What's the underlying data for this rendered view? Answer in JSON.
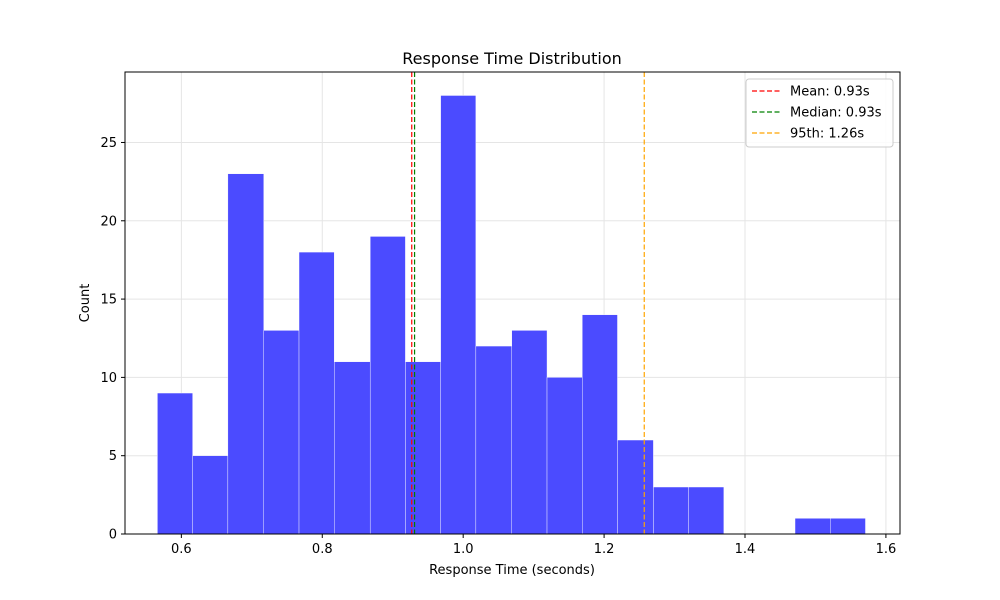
{
  "chart_data": {
    "type": "bar",
    "subtype": "histogram",
    "title": "Response Time Distribution",
    "xlabel": "Response Time (seconds)",
    "ylabel": "Count",
    "xlim": [
      0.52,
      1.62
    ],
    "ylim": [
      0,
      29.5
    ],
    "xticks": [
      0.6,
      0.8,
      1.0,
      1.2,
      1.4,
      1.6
    ],
    "xtick_labels": [
      "0.6",
      "0.8",
      "1.0",
      "1.2",
      "1.4",
      "1.6"
    ],
    "yticks": [
      0,
      5,
      10,
      15,
      20,
      25
    ],
    "ytick_labels": [
      "0",
      "5",
      "10",
      "15",
      "20",
      "25"
    ],
    "grid": true,
    "bar_color": "#4b4bff",
    "bins": [
      {
        "x0": 0.566,
        "x1": 0.616,
        "count": 9
      },
      {
        "x0": 0.616,
        "x1": 0.666,
        "count": 5
      },
      {
        "x0": 0.666,
        "x1": 0.717,
        "count": 23
      },
      {
        "x0": 0.717,
        "x1": 0.767,
        "count": 13
      },
      {
        "x0": 0.767,
        "x1": 0.817,
        "count": 18
      },
      {
        "x0": 0.817,
        "x1": 0.868,
        "count": 11
      },
      {
        "x0": 0.868,
        "x1": 0.918,
        "count": 19
      },
      {
        "x0": 0.918,
        "x1": 0.968,
        "count": 11
      },
      {
        "x0": 0.968,
        "x1": 1.018,
        "count": 28
      },
      {
        "x0": 1.018,
        "x1": 1.069,
        "count": 12
      },
      {
        "x0": 1.069,
        "x1": 1.119,
        "count": 13
      },
      {
        "x0": 1.119,
        "x1": 1.169,
        "count": 10
      },
      {
        "x0": 1.169,
        "x1": 1.219,
        "count": 14
      },
      {
        "x0": 1.219,
        "x1": 1.27,
        "count": 6
      },
      {
        "x0": 1.27,
        "x1": 1.32,
        "count": 3
      },
      {
        "x0": 1.32,
        "x1": 1.37,
        "count": 3
      },
      {
        "x0": 1.37,
        "x1": 1.42,
        "count": 0
      },
      {
        "x0": 1.42,
        "x1": 1.471,
        "count": 0
      },
      {
        "x0": 1.471,
        "x1": 1.521,
        "count": 1
      },
      {
        "x0": 1.521,
        "x1": 1.571,
        "count": 1
      }
    ],
    "reference_lines": [
      {
        "label": "Mean: 0.93s",
        "value": 0.927,
        "color": "#ff0000"
      },
      {
        "label": "Median: 0.93s",
        "value": 0.931,
        "color": "#008000"
      },
      {
        "label": "95th: 1.26s",
        "value": 1.257,
        "color": "#ffa500"
      }
    ],
    "legend_position": "top-right"
  }
}
